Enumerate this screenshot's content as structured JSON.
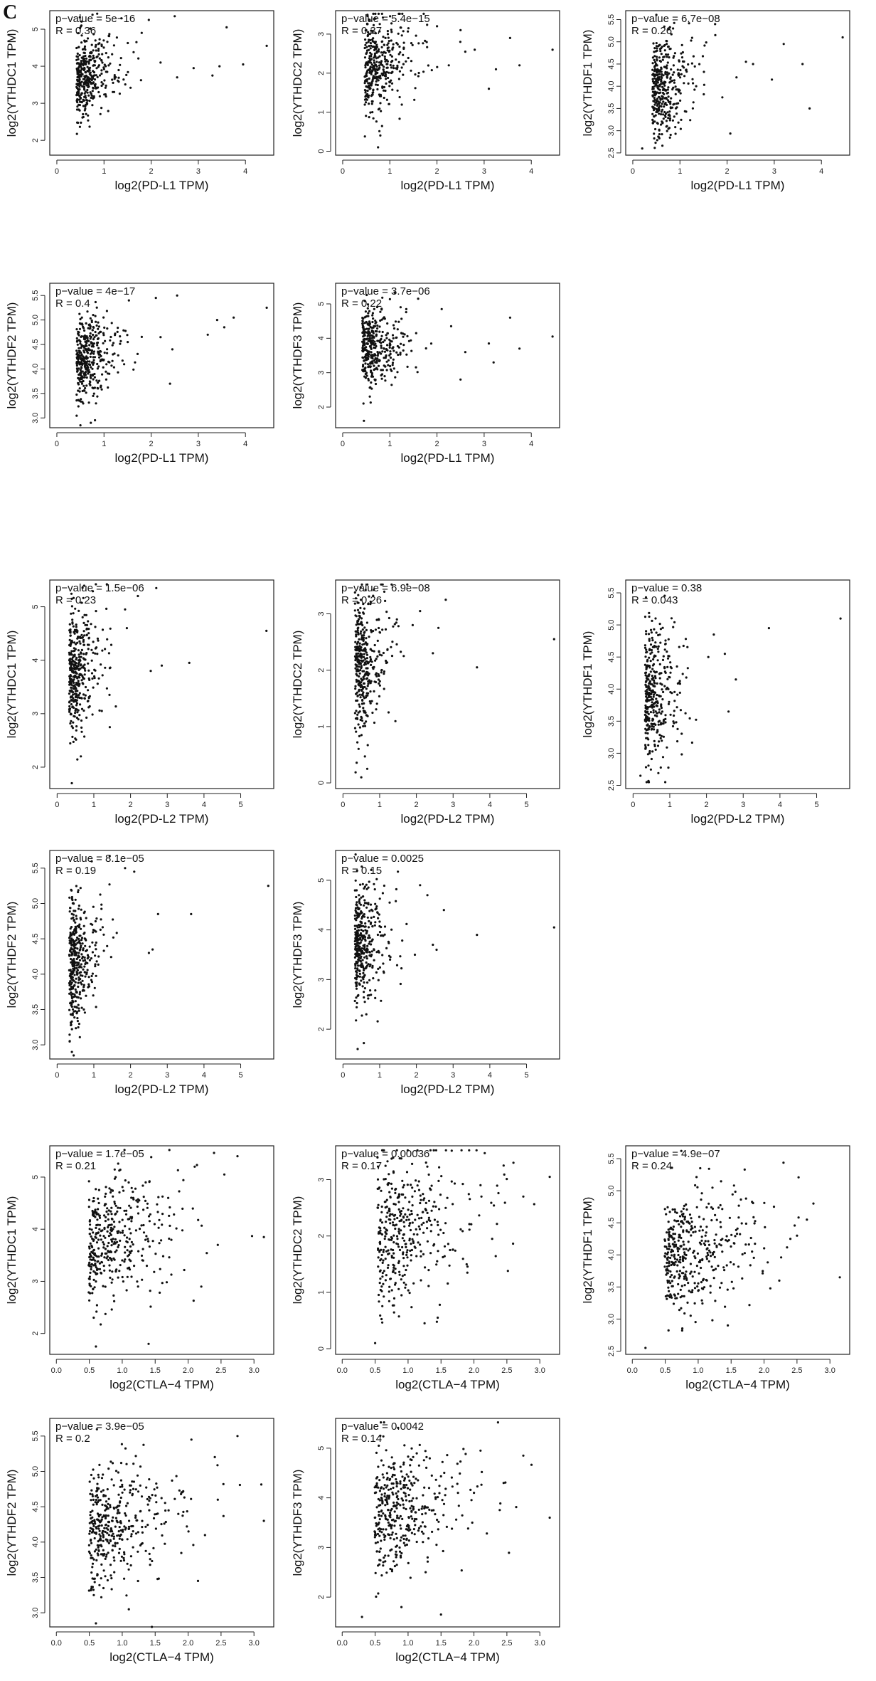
{
  "panel_label": "C",
  "chart_data": [
    {
      "type": "scatter",
      "id": "yc1-pdl1",
      "xlabel": "log2(PD-L1 TPM)",
      "ylabel": "log2(YTHDC1 TPM)",
      "stats": {
        "p": "p−value = 5e−16",
        "r": "R = 0.36"
      },
      "xlim": [
        -0.15,
        4.6
      ],
      "ylim": [
        1.6,
        5.5
      ],
      "xticks": [
        0,
        1,
        2,
        3,
        4
      ],
      "yticks": [
        2,
        3,
        4,
        5
      ],
      "gen": {
        "n": 380,
        "mx": 0.55,
        "sx": 0.38,
        "my": 3.75,
        "sy": 0.55,
        "slope": 0.45,
        "seed": 11
      },
      "outliers": [
        [
          4.45,
          4.55
        ],
        [
          3.6,
          5.05
        ],
        [
          3.45,
          4.0
        ],
        [
          3.3,
          3.75
        ],
        [
          2.9,
          3.95
        ],
        [
          2.55,
          3.7
        ],
        [
          2.5,
          5.35
        ],
        [
          2.2,
          4.1
        ],
        [
          1.95,
          5.25
        ],
        [
          1.8,
          4.9
        ],
        [
          3.95,
          4.05
        ]
      ]
    },
    {
      "type": "scatter",
      "id": "yc2-pdl1",
      "xlabel": "log2(PD-L1 TPM)",
      "ylabel": "log2(YTHDC2 TPM)",
      "stats": {
        "p": "p−value = 5.4e−15",
        "r": "R = 0.37"
      },
      "xlim": [
        -0.15,
        4.6
      ],
      "ylim": [
        -0.1,
        3.6
      ],
      "xticks": [
        0,
        1,
        2,
        3,
        4
      ],
      "yticks": [
        0,
        1,
        2,
        3
      ],
      "gen": {
        "n": 380,
        "mx": 0.6,
        "sx": 0.4,
        "my": 2.05,
        "sy": 0.6,
        "slope": 0.5,
        "seed": 23
      },
      "outliers": [
        [
          4.45,
          2.6
        ],
        [
          3.75,
          2.2
        ],
        [
          3.55,
          2.9
        ],
        [
          3.25,
          2.1
        ],
        [
          3.1,
          1.6
        ],
        [
          2.8,
          2.6
        ],
        [
          2.6,
          2.55
        ],
        [
          2.5,
          3.1
        ],
        [
          2.25,
          2.2
        ],
        [
          2.0,
          3.2
        ],
        [
          0.75,
          0.1
        ]
      ]
    },
    {
      "type": "scatter",
      "id": "yf1-pdl1",
      "xlabel": "log2(PD-L1 TPM)",
      "ylabel": "log2(YTHDF1 TPM)",
      "stats": {
        "p": "p−value = 6.7e−08",
        "r": "R = 0.26"
      },
      "xlim": [
        -0.15,
        4.6
      ],
      "ylim": [
        2.45,
        5.7
      ],
      "xticks": [
        0,
        1,
        2,
        3,
        4
      ],
      "yticks": [
        2.5,
        3.0,
        3.5,
        4.0,
        4.5,
        5.0,
        5.5
      ],
      "gen": {
        "n": 380,
        "mx": 0.55,
        "sx": 0.38,
        "my": 3.95,
        "sy": 0.55,
        "slope": 0.3,
        "seed": 37
      },
      "outliers": [
        [
          4.45,
          5.1
        ],
        [
          3.75,
          3.5
        ],
        [
          3.6,
          4.5
        ],
        [
          3.2,
          4.95
        ],
        [
          2.95,
          4.15
        ],
        [
          2.55,
          4.5
        ],
        [
          2.4,
          4.55
        ],
        [
          2.2,
          4.2
        ],
        [
          1.9,
          3.75
        ],
        [
          1.75,
          5.15
        ],
        [
          0.2,
          2.6
        ]
      ]
    },
    {
      "type": "scatter",
      "id": "yf2-pdl1",
      "xlabel": "log2(PD-L1 TPM)",
      "ylabel": "log2(YTHDF2 TPM)",
      "stats": {
        "p": "p−value = 4e−17",
        "r": "R = 0.4"
      },
      "xlim": [
        -0.15,
        4.6
      ],
      "ylim": [
        2.8,
        5.75
      ],
      "xticks": [
        0,
        1,
        2,
        3,
        4
      ],
      "yticks": [
        3.0,
        3.5,
        4.0,
        4.5,
        5.0,
        5.5
      ],
      "gen": {
        "n": 380,
        "mx": 0.55,
        "sx": 0.38,
        "my": 4.15,
        "sy": 0.45,
        "slope": 0.45,
        "seed": 41
      },
      "outliers": [
        [
          4.45,
          5.25
        ],
        [
          3.75,
          5.05
        ],
        [
          3.55,
          4.85
        ],
        [
          3.4,
          5.0
        ],
        [
          3.2,
          4.7
        ],
        [
          2.55,
          5.5
        ],
        [
          2.45,
          4.4
        ],
        [
          2.4,
          3.7
        ],
        [
          2.2,
          4.65
        ],
        [
          2.1,
          5.45
        ],
        [
          0.5,
          2.85
        ]
      ]
    },
    {
      "type": "scatter",
      "id": "yf3-pdl1",
      "xlabel": "log2(PD-L1 TPM)",
      "ylabel": "log2(YTHDF3 TPM)",
      "stats": {
        "p": "p−value = 3.7e−06",
        "r": "R = 0.22"
      },
      "xlim": [
        -0.15,
        4.6
      ],
      "ylim": [
        1.4,
        5.6
      ],
      "xticks": [
        0,
        1,
        2,
        3,
        4
      ],
      "yticks": [
        2,
        3,
        4,
        5
      ],
      "gen": {
        "n": 380,
        "mx": 0.55,
        "sx": 0.38,
        "my": 3.7,
        "sy": 0.6,
        "slope": 0.3,
        "seed": 53
      },
      "outliers": [
        [
          4.45,
          4.05
        ],
        [
          3.75,
          3.7
        ],
        [
          3.55,
          4.6
        ],
        [
          3.2,
          3.3
        ],
        [
          3.1,
          3.85
        ],
        [
          2.5,
          2.8
        ],
        [
          2.6,
          3.6
        ],
        [
          2.3,
          4.35
        ],
        [
          2.1,
          4.85
        ],
        [
          1.6,
          5.15
        ],
        [
          0.45,
          1.6
        ]
      ]
    },
    {
      "type": "scatter",
      "id": "yc1-pdl2",
      "xlabel": "log2(PD-L2 TPM)",
      "ylabel": "log2(YTHDC1 TPM)",
      "stats": {
        "p": "p−value = 1.5e−06",
        "r": "R = 0.23"
      },
      "xlim": [
        -0.2,
        5.9
      ],
      "ylim": [
        1.6,
        5.5
      ],
      "xticks": [
        0,
        1,
        2,
        3,
        4,
        5
      ],
      "yticks": [
        2,
        3,
        4,
        5
      ],
      "gen": {
        "n": 380,
        "mx": 0.45,
        "sx": 0.35,
        "my": 3.7,
        "sy": 0.6,
        "slope": 0.35,
        "seed": 61
      },
      "outliers": [
        [
          5.7,
          4.55
        ],
        [
          3.6,
          3.95
        ],
        [
          2.85,
          3.9
        ],
        [
          2.7,
          5.35
        ],
        [
          2.55,
          3.8
        ],
        [
          2.2,
          5.2
        ],
        [
          1.9,
          4.6
        ],
        [
          1.85,
          4.95
        ],
        [
          0.4,
          1.7
        ]
      ]
    },
    {
      "type": "scatter",
      "id": "yc2-pdl2",
      "xlabel": "log2(PD-L2 TPM)",
      "ylabel": "log2(YTHDC2 TPM)",
      "stats": {
        "p": "p−value = 6.9e−08",
        "r": "R = 0.26"
      },
      "xlim": [
        -0.2,
        5.9
      ],
      "ylim": [
        -0.1,
        3.6
      ],
      "xticks": [
        0,
        1,
        2,
        3,
        4,
        5
      ],
      "yticks": [
        0,
        1,
        2,
        3
      ],
      "gen": {
        "n": 380,
        "mx": 0.45,
        "sx": 0.35,
        "my": 2.05,
        "sy": 0.6,
        "slope": 0.35,
        "seed": 67
      },
      "outliers": [
        [
          5.75,
          2.55
        ],
        [
          3.65,
          2.05
        ],
        [
          2.8,
          3.25
        ],
        [
          2.6,
          2.75
        ],
        [
          2.45,
          2.3
        ],
        [
          2.1,
          3.05
        ],
        [
          1.9,
          2.8
        ],
        [
          0.5,
          0.1
        ]
      ]
    },
    {
      "type": "scatter",
      "id": "yf1-pdl2",
      "xlabel": "log2(PD-L2 TPM)",
      "ylabel": "log2(YTHDF1 TPM)",
      "stats": {
        "p": "p−value = 0.38",
        "r": "R = 0.043"
      },
      "xlim": [
        -0.2,
        5.9
      ],
      "ylim": [
        2.45,
        5.7
      ],
      "xticks": [
        0,
        1,
        2,
        3,
        4,
        5
      ],
      "yticks": [
        2.5,
        3.0,
        3.5,
        4.0,
        4.5,
        5.0,
        5.5
      ],
      "gen": {
        "n": 380,
        "mx": 0.45,
        "sx": 0.35,
        "my": 3.9,
        "sy": 0.55,
        "slope": 0.08,
        "seed": 71
      },
      "outliers": [
        [
          5.65,
          5.1
        ],
        [
          3.7,
          4.95
        ],
        [
          2.8,
          4.15
        ],
        [
          2.6,
          3.65
        ],
        [
          2.5,
          4.55
        ],
        [
          2.2,
          4.85
        ],
        [
          2.05,
          4.5
        ],
        [
          0.2,
          2.65
        ]
      ]
    },
    {
      "type": "scatter",
      "id": "yf2-pdl2",
      "xlabel": "log2(PD-L2 TPM)",
      "ylabel": "log2(YTHDF2 TPM)",
      "stats": {
        "p": "p−value = 8.1e−05",
        "r": "R = 0.19"
      },
      "xlim": [
        -0.2,
        5.9
      ],
      "ylim": [
        2.8,
        5.75
      ],
      "xticks": [
        0,
        1,
        2,
        3,
        4,
        5
      ],
      "yticks": [
        3.0,
        3.5,
        4.0,
        4.5,
        5.0,
        5.5
      ],
      "gen": {
        "n": 380,
        "mx": 0.45,
        "sx": 0.35,
        "my": 4.15,
        "sy": 0.45,
        "slope": 0.3,
        "seed": 79
      },
      "outliers": [
        [
          5.75,
          5.25
        ],
        [
          3.65,
          4.85
        ],
        [
          2.75,
          4.85
        ],
        [
          2.6,
          4.35
        ],
        [
          2.5,
          4.3
        ],
        [
          2.1,
          5.45
        ],
        [
          1.85,
          5.5
        ],
        [
          0.45,
          2.85
        ]
      ]
    },
    {
      "type": "scatter",
      "id": "yf3-pdl2",
      "xlabel": "log2(PD-L2 TPM)",
      "ylabel": "log2(YTHDF3 TPM)",
      "stats": {
        "p": "p−value = 0.0025",
        "r": "R = 0.15"
      },
      "xlim": [
        -0.2,
        5.9
      ],
      "ylim": [
        1.4,
        5.6
      ],
      "xticks": [
        0,
        1,
        2,
        3,
        4,
        5
      ],
      "yticks": [
        2,
        3,
        4,
        5
      ],
      "gen": {
        "n": 380,
        "mx": 0.45,
        "sx": 0.35,
        "my": 3.7,
        "sy": 0.6,
        "slope": 0.25,
        "seed": 83
      },
      "outliers": [
        [
          5.75,
          4.05
        ],
        [
          3.65,
          3.9
        ],
        [
          2.75,
          4.4
        ],
        [
          2.55,
          3.6
        ],
        [
          2.45,
          3.7
        ],
        [
          2.3,
          4.7
        ],
        [
          2.1,
          4.9
        ],
        [
          0.4,
          1.6
        ]
      ]
    },
    {
      "type": "scatter",
      "id": "yc1-ctla4",
      "xlabel": "log2(CTLA−4 TPM)",
      "ylabel": "log2(YTHDC1 TPM)",
      "stats": {
        "p": "p−value = 1.7e−05",
        "r": "R = 0.21"
      },
      "xlim": [
        -0.1,
        3.3
      ],
      "ylim": [
        1.6,
        5.6
      ],
      "xticks": [
        0.0,
        0.5,
        1.0,
        1.5,
        2.0,
        2.5,
        3.0
      ],
      "yticks": [
        2,
        3,
        4,
        5
      ],
      "gen": {
        "n": 400,
        "mx": 0.7,
        "sx": 0.6,
        "my": 3.75,
        "sy": 0.6,
        "slope": 0.3,
        "seed": 97
      },
      "outliers": [
        [
          3.15,
          3.85
        ],
        [
          2.75,
          5.4
        ],
        [
          2.55,
          5.05
        ],
        [
          2.45,
          3.7
        ],
        [
          2.2,
          2.9
        ],
        [
          2.1,
          5.2
        ],
        [
          1.4,
          1.8
        ],
        [
          0.6,
          1.75
        ]
      ]
    },
    {
      "type": "scatter",
      "id": "yc2-ctla4",
      "xlabel": "log2(CTLA−4 TPM)",
      "ylabel": "log2(YTHDC2 TPM)",
      "stats": {
        "p": "p−value = 0.00036",
        "r": "R = 0.17"
      },
      "xlim": [
        -0.1,
        3.3
      ],
      "ylim": [
        -0.1,
        3.6
      ],
      "xticks": [
        0.0,
        0.5,
        1.0,
        1.5,
        2.0,
        2.5,
        3.0
      ],
      "yticks": [
        0,
        1,
        2,
        3
      ],
      "gen": {
        "n": 400,
        "mx": 0.75,
        "sx": 0.62,
        "my": 2.1,
        "sy": 0.65,
        "slope": 0.25,
        "seed": 101
      },
      "outliers": [
        [
          3.15,
          3.05
        ],
        [
          2.75,
          2.7
        ],
        [
          2.6,
          3.3
        ],
        [
          2.45,
          3.25
        ],
        [
          2.1,
          2.9
        ],
        [
          1.9,
          1.35
        ],
        [
          1.45,
          0.55
        ],
        [
          1.25,
          0.45
        ],
        [
          0.5,
          0.1
        ]
      ]
    },
    {
      "type": "scatter",
      "id": "yf1-ctla4",
      "xlabel": "log2(CTLA−4 TPM)",
      "ylabel": "log2(YTHDF1 TPM)",
      "stats": {
        "p": "p−value = 4.9e−07",
        "r": "R = 0.24"
      },
      "xlim": [
        -0.1,
        3.3
      ],
      "ylim": [
        2.45,
        5.7
      ],
      "xticks": [
        0.0,
        0.5,
        1.0,
        1.5,
        2.0,
        2.5,
        3.0
      ],
      "yticks": [
        2.5,
        3.0,
        3.5,
        4.0,
        4.5,
        5.0,
        5.5
      ],
      "gen": {
        "n": 400,
        "mx": 0.7,
        "sx": 0.6,
        "my": 4.0,
        "sy": 0.5,
        "slope": 0.25,
        "seed": 107
      },
      "outliers": [
        [
          3.15,
          3.65
        ],
        [
          2.75,
          4.8
        ],
        [
          2.65,
          4.55
        ],
        [
          2.5,
          4.3
        ],
        [
          2.4,
          4.25
        ],
        [
          2.15,
          4.75
        ],
        [
          1.45,
          2.9
        ],
        [
          0.2,
          2.55
        ]
      ]
    },
    {
      "type": "scatter",
      "id": "yf2-ctla4",
      "xlabel": "log2(CTLA−4 TPM)",
      "ylabel": "log2(YTHDF2 TPM)",
      "stats": {
        "p": "p−value = 3.9e−05",
        "r": "R = 0.2"
      },
      "xlim": [
        -0.1,
        3.3
      ],
      "ylim": [
        2.8,
        5.75
      ],
      "xticks": [
        0.0,
        0.5,
        1.0,
        1.5,
        2.0,
        2.5,
        3.0
      ],
      "yticks": [
        3.0,
        3.5,
        4.0,
        4.5,
        5.0,
        5.5
      ],
      "gen": {
        "n": 400,
        "mx": 0.7,
        "sx": 0.6,
        "my": 4.2,
        "sy": 0.45,
        "slope": 0.25,
        "seed": 113
      },
      "outliers": [
        [
          3.15,
          4.3
        ],
        [
          2.75,
          5.5
        ],
        [
          2.45,
          4.6
        ],
        [
          2.15,
          3.45
        ],
        [
          2.05,
          5.45
        ],
        [
          1.45,
          2.8
        ],
        [
          1.1,
          3.05
        ],
        [
          0.6,
          2.85
        ]
      ]
    },
    {
      "type": "scatter",
      "id": "yf3-ctla4",
      "xlabel": "log2(CTLA−4 TPM)",
      "ylabel": "log2(YTHDF3 TPM)",
      "stats": {
        "p": "p−value = 0.0042",
        "r": "R = 0.14"
      },
      "xlim": [
        -0.1,
        3.3
      ],
      "ylim": [
        1.4,
        5.6
      ],
      "xticks": [
        0.0,
        0.5,
        1.0,
        1.5,
        2.0,
        2.5,
        3.0
      ],
      "yticks": [
        2,
        3,
        4,
        5
      ],
      "gen": {
        "n": 400,
        "mx": 0.7,
        "sx": 0.6,
        "my": 3.75,
        "sy": 0.6,
        "slope": 0.2,
        "seed": 127
      },
      "outliers": [
        [
          3.15,
          3.6
        ],
        [
          2.75,
          4.85
        ],
        [
          2.45,
          4.3
        ],
        [
          2.1,
          4.95
        ],
        [
          2.0,
          4.1
        ],
        [
          1.5,
          1.65
        ],
        [
          0.9,
          1.8
        ],
        [
          0.3,
          1.6
        ]
      ]
    }
  ]
}
